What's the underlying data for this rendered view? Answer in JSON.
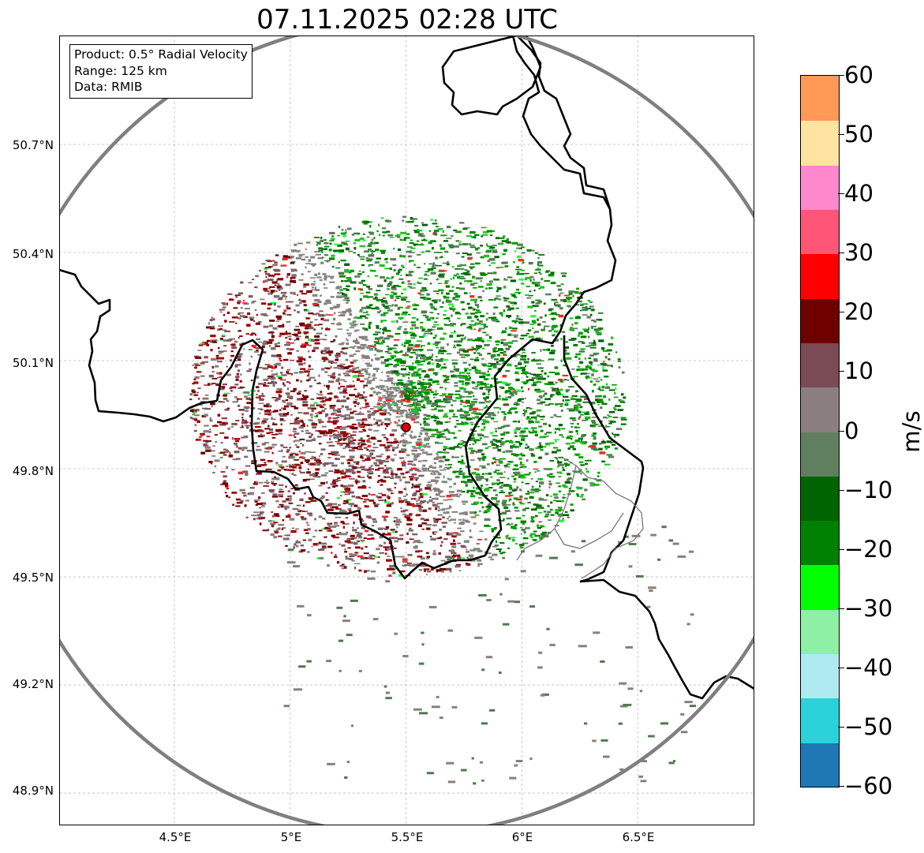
{
  "title": "07.11.2025 02:28 UTC",
  "info_box": {
    "product": "Product: 0.5° Radial Velocity",
    "range": "Range: 125 km",
    "data": "Data: RMIB"
  },
  "map": {
    "lat_labels": [
      "50.7°N",
      "50.4°N",
      "50.1°N",
      "49.8°N",
      "49.5°N",
      "49.2°N",
      "48.9°N"
    ],
    "lon_labels": [
      "4.5°E",
      "5°E",
      "5.5°E",
      "6°E",
      "6.5°E"
    ],
    "radar_site": {
      "lon": 5.5,
      "lat": 49.915
    },
    "range_ring_km": 125
  },
  "colorbar": {
    "unit": "m/s",
    "min": -60,
    "max": 60,
    "tick_labels": [
      "60",
      "50",
      "40",
      "30",
      "20",
      "10",
      "0",
      "−10",
      "−20",
      "−30",
      "−40",
      "−50",
      "−60"
    ],
    "colors": [
      "#1f77b4",
      "#2bd2d9",
      "#aeeaf0",
      "#8ef0a5",
      "#00ff00",
      "#008000",
      "#006400",
      "#5f7f5f",
      "#8a7e7e",
      "#7a4a55",
      "#6e0000",
      "#ff0000",
      "#ff5577",
      "#ff88cc",
      "#ffe3a0",
      "#ff9955"
    ]
  }
}
